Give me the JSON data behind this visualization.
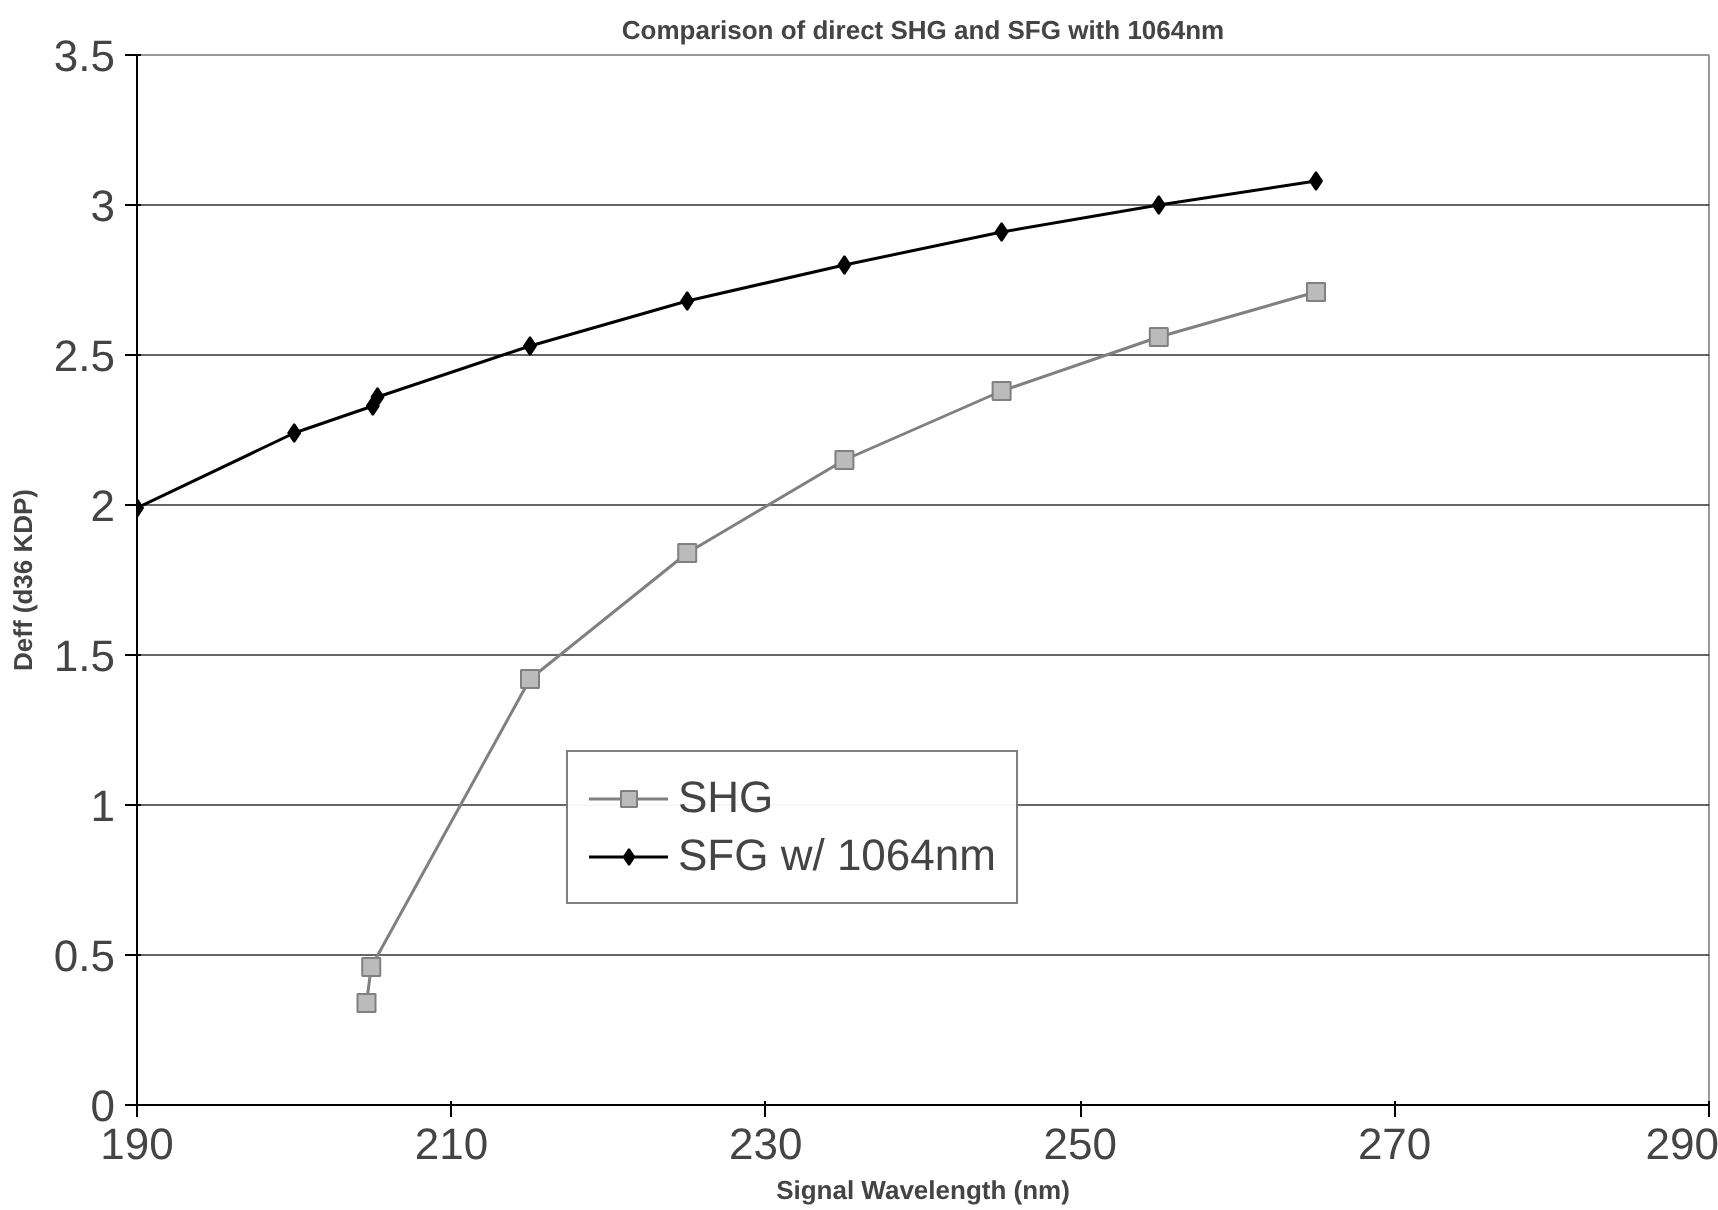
{
  "chart_data": {
    "type": "line",
    "title": "Comparison of direct SHG and SFG with 1064nm",
    "xlabel": "Signal Wavelength (nm)",
    "ylabel": "Deff (d36 KDP)",
    "xlim": [
      190,
      290
    ],
    "xticks": [
      190,
      210,
      230,
      250,
      270,
      290
    ],
    "ylim": [
      0,
      3.5
    ],
    "yticks": [
      0,
      0.5,
      1,
      1.5,
      2,
      2.5,
      3,
      3.5
    ],
    "grid": "y",
    "legend": "center",
    "series": [
      {
        "name": "SHG",
        "color": "#808080",
        "marker": "square",
        "x": [
          204.6,
          204.9,
          215,
          225,
          235,
          245,
          255,
          265
        ],
        "values": [
          0.34,
          0.46,
          1.42,
          1.84,
          2.15,
          2.38,
          2.56,
          2.71
        ]
      },
      {
        "name": "SFG w/ 1064nm",
        "color": "#000000",
        "marker": "diamond",
        "x": [
          190,
          200,
          205,
          205.3,
          215,
          225,
          235,
          245,
          255,
          265
        ],
        "values": [
          1.99,
          2.24,
          2.33,
          2.36,
          2.53,
          2.68,
          2.8,
          2.91,
          3.0,
          3.08
        ]
      }
    ]
  }
}
